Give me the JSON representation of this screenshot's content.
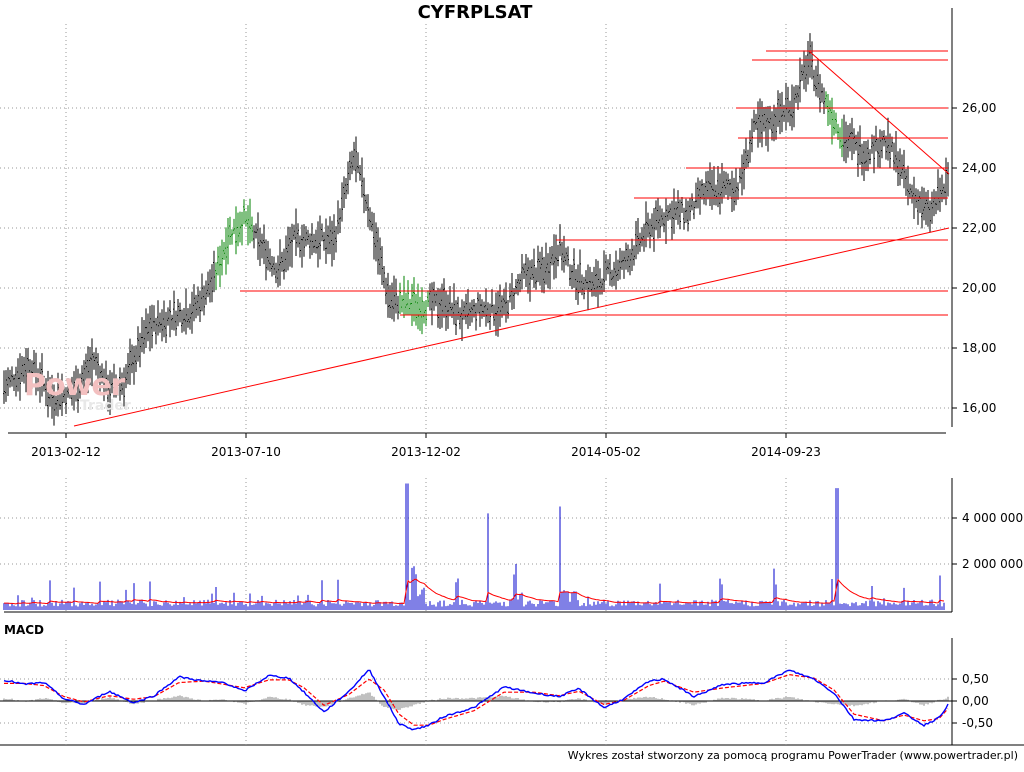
{
  "title": "CYFRPLSAT",
  "macd_label": "MACD",
  "footer": "Wykres został stworzony za pomocą programu PowerTrader (www.powertrader.pl)",
  "watermark": {
    "brand_1": "Power",
    "brand_2": "Trader"
  },
  "colors": {
    "price": "#000000",
    "price_trend": "#008000",
    "lines": "#ff0000",
    "volume": "#0000cc",
    "volume_avg": "#ff0000",
    "macd": "#0000ff",
    "signal": "#ff0000",
    "hist": "#808080"
  },
  "chart_data": [
    {
      "type": "ohlc",
      "x_ticks": [
        "2013-02-12",
        "2013-07-10",
        "2013-12-02",
        "2014-05-02",
        "2014-09-23"
      ],
      "y_ticks": [
        "16,00",
        "18,00",
        "20,00",
        "22,00",
        "24,00",
        "26,00"
      ],
      "ylim": [
        15.4,
        28.1
      ],
      "series": [
        {
          "x": [
            0,
            25,
            50,
            70,
            90,
            105,
            120,
            145,
            165,
            190,
            210,
            225,
            240,
            255,
            275,
            290,
            305,
            330,
            350,
            365,
            385,
            400,
            415,
            440,
            460,
            475,
            500,
            520,
            540,
            555,
            570,
            590,
            605,
            620,
            645,
            665,
            685,
            700,
            715,
            735,
            750,
            765,
            790,
            805,
            820,
            840,
            860,
            880,
            895,
            905,
            915,
            925,
            935,
            945
          ],
          "values": [
            16.7,
            17.5,
            16.3,
            16.6,
            17.6,
            16.6,
            16.9,
            18.7,
            19.0,
            19.3,
            20.3,
            21.8,
            22.3,
            21.5,
            20.6,
            21.6,
            21.6,
            21.6,
            24.4,
            22.6,
            19.6,
            19.5,
            19.4,
            19.5,
            19.0,
            19.3,
            19.3,
            20.4,
            20.6,
            21.4,
            20.4,
            20.1,
            20.5,
            20.8,
            22.0,
            22.5,
            22.5,
            23.2,
            23.3,
            23.4,
            25.3,
            25.5,
            26.2,
            27.6,
            26.3,
            25.0,
            24.5,
            24.9,
            24.2,
            23.2,
            22.9,
            22.4,
            23.1,
            23.5
          ]
        }
      ],
      "horizontal_levels": [
        19.1,
        19.9,
        21.6,
        23.0,
        24.0,
        25.0,
        26.0,
        27.6,
        27.9
      ],
      "trendlines": [
        {
          "from": [
            70,
            15.4
          ],
          "to": [
            945,
            22.0
          ]
        },
        {
          "from": [
            805,
            27.9
          ],
          "to": [
            945,
            23.8
          ]
        }
      ]
    },
    {
      "type": "bar",
      "y_ticks": [
        "2 000 000",
        "4 000 000"
      ],
      "ylim": [
        0,
        5600000
      ],
      "spikes": [
        {
          "x": 403,
          "value": 5500000
        },
        {
          "x": 484,
          "value": 4200000
        },
        {
          "x": 556,
          "value": 4500000
        },
        {
          "x": 833,
          "value": 5300000
        },
        {
          "x": 410,
          "value": 1900000
        },
        {
          "x": 512,
          "value": 2000000
        },
        {
          "x": 770,
          "value": 1800000
        },
        {
          "x": 936,
          "value": 1500000
        }
      ]
    },
    {
      "type": "line",
      "y_ticks": [
        "0,50",
        "0,00",
        "-0,50"
      ],
      "ylim": [
        -0.72,
        0.78
      ],
      "x": [
        0,
        20,
        40,
        60,
        80,
        105,
        130,
        150,
        175,
        200,
        220,
        240,
        265,
        285,
        300,
        320,
        345,
        365,
        380,
        395,
        410,
        425,
        440,
        470,
        500,
        530,
        555,
        575,
        600,
        620,
        645,
        660,
        690,
        720,
        760,
        785,
        810,
        830,
        850,
        880,
        900,
        920,
        935,
        945
      ],
      "macd": [
        0.48,
        0.38,
        0.42,
        0.05,
        -0.08,
        0.22,
        -0.04,
        0.12,
        0.55,
        0.45,
        0.42,
        0.22,
        0.58,
        0.52,
        0.2,
        -0.25,
        0.22,
        0.72,
        0.1,
        -0.52,
        -0.65,
        -0.55,
        -0.35,
        -0.15,
        0.32,
        0.18,
        0.1,
        0.28,
        -0.15,
        0.05,
        0.45,
        0.5,
        0.1,
        0.38,
        0.42,
        0.7,
        0.5,
        0.18,
        -0.42,
        -0.45,
        -0.28,
        -0.55,
        -0.38,
        -0.05
      ],
      "signal": [
        0.4,
        0.4,
        0.35,
        0.1,
        -0.02,
        0.12,
        0.04,
        0.1,
        0.42,
        0.45,
        0.38,
        0.3,
        0.48,
        0.48,
        0.3,
        -0.1,
        0.15,
        0.5,
        0.25,
        -0.3,
        -0.55,
        -0.55,
        -0.42,
        -0.22,
        0.2,
        0.2,
        0.12,
        0.22,
        -0.08,
        0.02,
        0.35,
        0.45,
        0.2,
        0.3,
        0.4,
        0.6,
        0.52,
        0.25,
        -0.3,
        -0.45,
        -0.32,
        -0.45,
        -0.4,
        -0.15
      ]
    }
  ]
}
